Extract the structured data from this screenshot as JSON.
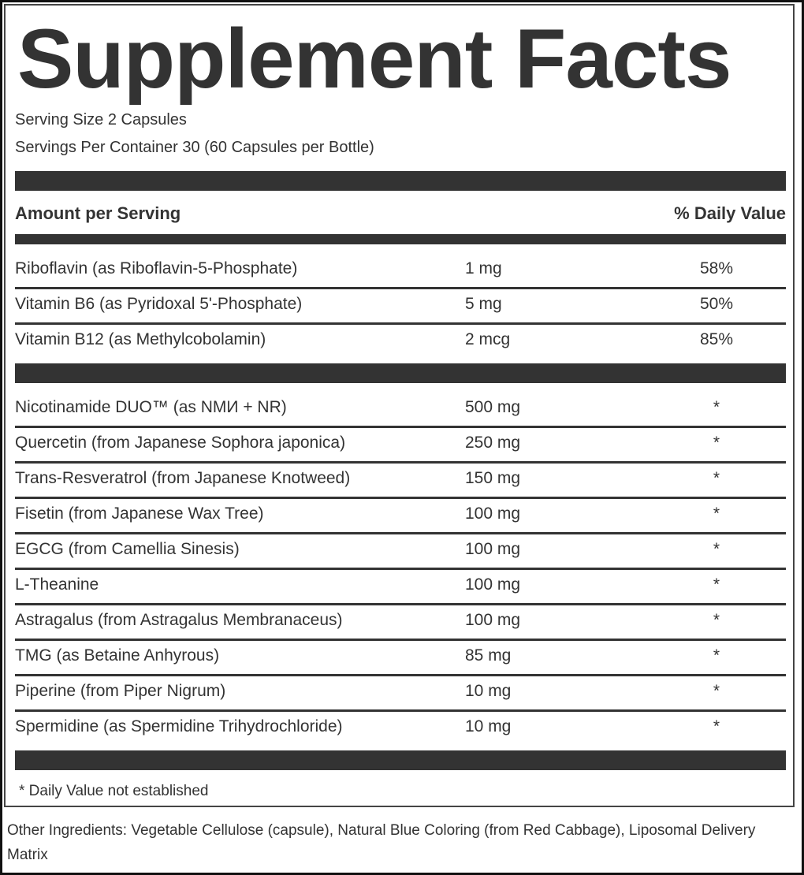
{
  "title": "Supplement Facts",
  "serving_size": "Serving Size 2 Capsules",
  "servings_per_container": "Servings Per Container 30 (60 Capsules per Bottle)",
  "header": {
    "amount": "Amount per Serving",
    "daily_value": "% Daily Value"
  },
  "vitamins": [
    {
      "name": "Riboflavin  (as Riboflavin-5-Phosphate)",
      "amount": "1 mg",
      "dv": "58%"
    },
    {
      "name": "Vitamin B6 (as Pyridoxal 5'-Phosphate)",
      "amount": "5 mg",
      "dv": "50%"
    },
    {
      "name": "Vitamin B12  (as Methylcobolamin)",
      "amount": "2 mcg",
      "dv": "85%"
    }
  ],
  "ingredients": [
    {
      "name": "Nicotinamide DUO™ (as NMИ + NR)",
      "amount": "500 mg",
      "dv": "*"
    },
    {
      "name": "Quercetin (from Japanese Sophora japonica)",
      "amount": "250 mg",
      "dv": "*"
    },
    {
      "name": "Trans-Resveratrol (from Japanese Knotweed)",
      "amount": "150 mg",
      "dv": "*"
    },
    {
      "name": "Fisetin (from Japanese Wax Tree)",
      "amount": "100 mg",
      "dv": "*"
    },
    {
      "name": "EGCG (from Camellia Sinesis)",
      "amount": "100 mg",
      "dv": "*"
    },
    {
      "name": "L-Theanine",
      "amount": "100 mg",
      "dv": "*"
    },
    {
      "name": "Astragalus (from Astragalus Membranaceus)",
      "amount": "100 mg",
      "dv": "*"
    },
    {
      "name": "TMG (as Betaine Anhyrous)",
      "amount": "85 mg",
      "dv": "*"
    },
    {
      "name": "Piperine (from Piper Nigrum)",
      "amount": "10 mg",
      "dv": "*"
    },
    {
      "name": "Spermidine (as Spermidine Trihydrochloride)",
      "amount": "10 mg",
      "dv": "*"
    }
  ],
  "footnote": "* Daily Value not established",
  "other_ingredients": "Other Ingredients: Vegetable Cellulose (capsule), Natural Blue Coloring (from Red Cabbage), Liposomal Delivery Matrix"
}
